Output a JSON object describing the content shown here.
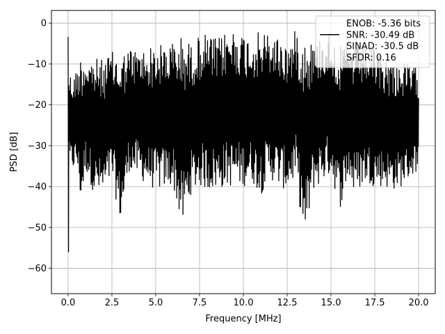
{
  "chart_data": {
    "type": "line",
    "title": "",
    "xlabel": "Frequency [MHz]",
    "ylabel": "PSD [dB]",
    "xlim": [
      -0.95,
      20.95
    ],
    "ylim": [
      -66.2,
      3.1
    ],
    "xticks": [
      0.0,
      2.5,
      5.0,
      7.5,
      10.0,
      12.5,
      15.0,
      17.5,
      20.0
    ],
    "xtick_labels": [
      "0.0",
      "2.5",
      "5.0",
      "7.5",
      "10.0",
      "12.5",
      "15.0",
      "17.5",
      "20.0"
    ],
    "yticks": [
      0,
      -10,
      -20,
      -30,
      -40,
      -50,
      -60
    ],
    "ytick_labels": [
      "0",
      "−10",
      "−20",
      "−30",
      "−40",
      "−50",
      "−60"
    ],
    "grid": true,
    "legend_position": "top-right",
    "legend_entries": [
      {
        "label": "ENOB: -5.36 bits",
        "line": false
      },
      {
        "label": "SNR: -30.49 dB",
        "line": true
      },
      {
        "label": "SINAD: -30.5 dB",
        "line": false
      },
      {
        "label": "SFDR: 0.16",
        "line": false
      }
    ],
    "series": [
      {
        "name": "",
        "color": "#000000",
        "x": [
          0.0,
          0.02,
          0.05,
          0.1,
          0.3,
          0.5,
          0.75,
          1.0,
          1.5,
          2.0,
          2.5,
          3.0,
          3.5,
          4.0,
          5.0,
          6.0,
          6.5,
          7.0,
          7.5,
          8.0,
          8.5,
          9.0,
          9.5,
          10.0,
          10.5,
          11.0,
          11.5,
          12.0,
          12.5,
          13.0,
          13.5,
          14.0,
          15.0,
          15.5,
          16.0,
          16.3,
          17.0,
          17.5,
          18.0,
          18.5,
          19.0,
          19.5,
          20.0
        ],
        "max": [
          0,
          -5,
          -10,
          -12,
          -13,
          -11,
          -7.5,
          -8,
          -8.5,
          -9,
          -7,
          -7.5,
          -6,
          -6.5,
          -5.5,
          -4.5,
          -3,
          -5,
          -3,
          -2.5,
          -4,
          -2,
          -1,
          -2.5,
          -3,
          -2,
          -2.5,
          -3,
          -5,
          -1.5,
          -3,
          -4,
          -2,
          -6,
          -4.5,
          -5.5,
          -5,
          -6,
          -8,
          -9,
          -9.5,
          -10,
          -11
        ],
        "min": [
          -17,
          -63,
          -37,
          -36,
          -36,
          -35,
          -45,
          -36,
          -42,
          -43,
          -38,
          -49,
          -36,
          -38,
          -41,
          -40,
          -50.5,
          -42,
          -40,
          -41,
          -41,
          -40,
          -40,
          -40,
          -39,
          -42,
          -38,
          -40,
          -41,
          -38,
          -54,
          -41,
          -37,
          -45.5,
          -38,
          -42,
          -39,
          -40,
          -40,
          -41,
          -40,
          -38,
          -36
        ]
      }
    ]
  }
}
